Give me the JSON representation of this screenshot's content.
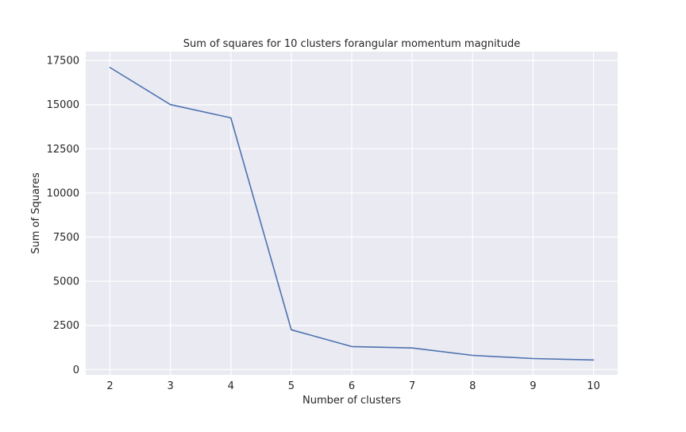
{
  "chart_data": {
    "type": "line",
    "title": "Sum of squares for 10 clusters forangular momentum magnitude",
    "xlabel": "Number of clusters",
    "ylabel": "Sum of Squares",
    "x": [
      2,
      3,
      4,
      5,
      6,
      7,
      8,
      9,
      10
    ],
    "series": [
      {
        "values": [
          17100,
          15000,
          14250,
          2250,
          1300,
          1220,
          800,
          620,
          540
        ],
        "color": "#4c72b0"
      }
    ],
    "xlim": [
      1.6,
      10.4
    ],
    "ylim": [
      -300,
      18000
    ],
    "xticks": [
      "2",
      "3",
      "4",
      "5",
      "6",
      "7",
      "8",
      "9",
      "10"
    ],
    "yticks": [
      "0",
      "2500",
      "5000",
      "7500",
      "10000",
      "12500",
      "15000",
      "17500"
    ],
    "grid": true,
    "background_color": "#eaeaf2",
    "grid_color": "#ffffff"
  }
}
